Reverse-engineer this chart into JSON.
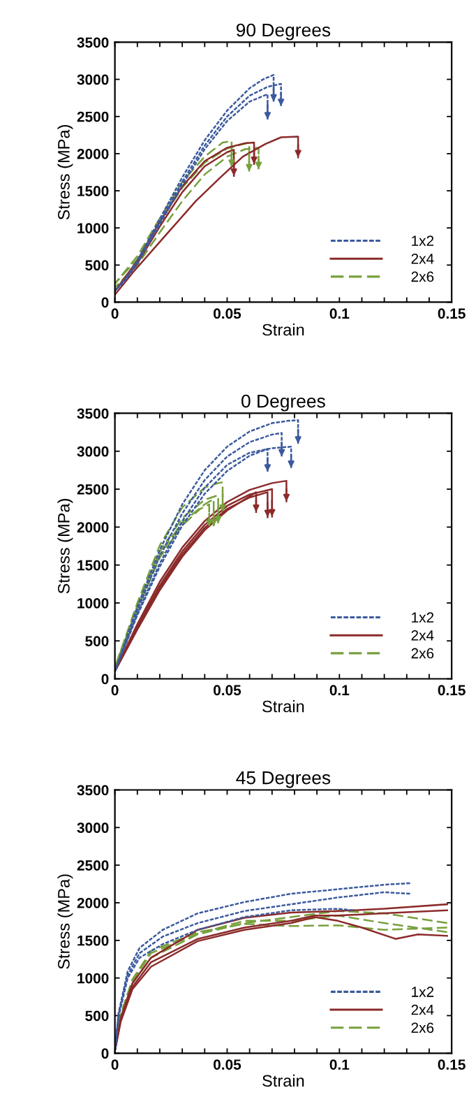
{
  "chart_data": [
    {
      "type": "line",
      "title": "90 Degrees",
      "xlabel": "Strain",
      "ylabel": "Stress (MPa)",
      "xlim": [
        0,
        0.15
      ],
      "ylim": [
        0,
        3500
      ],
      "xticks": [
        0,
        {
          "value": 0.01,
          "label": null
        },
        {
          "value": 0.02,
          "label": null
        },
        {
          "value": 0.03,
          "label": null
        },
        {
          "value": 0.04,
          "label": null
        },
        0.05,
        {
          "value": 0.06,
          "label": null
        },
        {
          "value": 0.07,
          "label": null
        },
        {
          "value": 0.08,
          "label": null
        },
        {
          "value": 0.09,
          "label": null
        },
        0.1,
        {
          "value": 0.11,
          "label": null
        },
        {
          "value": 0.12,
          "label": null
        },
        {
          "value": 0.13,
          "label": null
        },
        {
          "value": 0.14,
          "label": null
        },
        0.15
      ],
      "yticks": [
        0,
        500,
        1000,
        1500,
        2000,
        2500,
        3000,
        3500
      ],
      "legend": "bottom right",
      "grid": false,
      "series": [
        {
          "name": "1x2",
          "color": "#3b5a9d",
          "line_style": "dotted",
          "x": [
            0,
            0.005,
            0.01,
            0.02,
            0.03,
            0.04,
            0.05,
            0.06,
            0.066,
            0.0707,
            0.0707
          ],
          "values": [
            150,
            330,
            560,
            1120,
            1680,
            2180,
            2580,
            2880,
            3000,
            3060,
            2700
          ]
        },
        {
          "color": "#3b5a9d",
          "line_style": "dotted",
          "x": [
            0,
            0.005,
            0.01,
            0.02,
            0.03,
            0.04,
            0.05,
            0.06,
            0.068,
            0.074,
            0.074
          ],
          "values": [
            150,
            320,
            540,
            1080,
            1620,
            2110,
            2500,
            2780,
            2900,
            2940,
            2640
          ]
        },
        {
          "color": "#3b5a9d",
          "line_style": "dotted",
          "x": [
            0,
            0.005,
            0.01,
            0.02,
            0.03,
            0.04,
            0.05,
            0.06,
            0.068,
            0.068
          ],
          "values": [
            150,
            310,
            520,
            1050,
            1580,
            2060,
            2440,
            2700,
            2800,
            2460
          ]
        },
        {
          "name": "2x4",
          "color": "#8b2a2a",
          "line_style": "solid",
          "x": [
            0,
            0.008,
            0.022,
            0.036,
            0.047,
            0.057,
            0.067,
            0.074,
            0.0816,
            0.0816
          ],
          "values": [
            100,
            400,
            880,
            1360,
            1680,
            1960,
            2130,
            2220,
            2230,
            1950
          ]
        },
        {
          "color": "#8b2a2a",
          "line_style": "solid",
          "x": [
            0,
            0.01,
            0.02,
            0.03,
            0.04,
            0.05,
            0.058,
            0.062,
            0.062
          ],
          "values": [
            150,
            560,
            1080,
            1560,
            1900,
            2080,
            2140,
            2150,
            1860
          ]
        },
        {
          "color": "#8b2a2a",
          "line_style": "solid",
          "x": [
            0,
            0.01,
            0.02,
            0.03,
            0.04,
            0.05,
            0.053,
            0.053
          ],
          "values": [
            150,
            520,
            1020,
            1480,
            1830,
            2020,
            2050,
            1700
          ]
        },
        {
          "name": "2x6",
          "color": "#77a03c",
          "line_style": "dashed",
          "x": [
            0,
            0.01,
            0.02,
            0.03,
            0.04,
            0.048,
            0.052,
            0.052
          ],
          "values": [
            250,
            620,
            1130,
            1620,
            1960,
            2150,
            2170,
            1820
          ]
        },
        {
          "color": "#77a03c",
          "line_style": "dashed",
          "x": [
            0,
            0.01,
            0.02,
            0.03,
            0.04,
            0.05,
            0.0598,
            0.0598
          ],
          "values": [
            250,
            580,
            1080,
            1540,
            1880,
            2070,
            2150,
            1760
          ]
        },
        {
          "color": "#77a03c",
          "line_style": "dashed",
          "x": [
            0,
            0.01,
            0.02,
            0.03,
            0.04,
            0.05,
            0.058,
            0.064,
            0.064
          ],
          "values": [
            200,
            500,
            940,
            1360,
            1720,
            1960,
            2060,
            2080,
            1790
          ]
        }
      ]
    },
    {
      "type": "line",
      "title": "0 Degrees",
      "xlabel": "Strain",
      "ylabel": "Stress (MPa)",
      "xlim": [
        0,
        0.15
      ],
      "ylim": [
        0,
        3500
      ],
      "xticks": [
        0,
        {
          "value": 0.01,
          "label": null
        },
        {
          "value": 0.02,
          "label": null
        },
        {
          "value": 0.03,
          "label": null
        },
        {
          "value": 0.04,
          "label": null
        },
        0.05,
        {
          "value": 0.06,
          "label": null
        },
        {
          "value": 0.07,
          "label": null
        },
        {
          "value": 0.08,
          "label": null
        },
        {
          "value": 0.09,
          "label": null
        },
        0.1,
        {
          "value": 0.11,
          "label": null
        },
        {
          "value": 0.12,
          "label": null
        },
        {
          "value": 0.13,
          "label": null
        },
        {
          "value": 0.14,
          "label": null
        },
        0.15
      ],
      "yticks": [
        0,
        500,
        1000,
        1500,
        2000,
        2500,
        3000,
        3500
      ],
      "legend": "bottom right",
      "grid": false,
      "series": [
        {
          "name": "1x2",
          "color": "#3b5a9d",
          "line_style": "dotted",
          "x": [
            0,
            0.01,
            0.02,
            0.03,
            0.04,
            0.05,
            0.06,
            0.07,
            0.077,
            0.0816,
            0.0816
          ],
          "values": [
            100,
            950,
            1700,
            2300,
            2750,
            3060,
            3260,
            3370,
            3400,
            3410,
            3100
          ]
        },
        {
          "color": "#3b5a9d",
          "line_style": "dotted",
          "x": [
            0,
            0.01,
            0.02,
            0.03,
            0.04,
            0.05,
            0.06,
            0.07,
            0.0743,
            0.0743
          ],
          "values": [
            100,
            900,
            1620,
            2180,
            2620,
            2930,
            3120,
            3220,
            3240,
            2930
          ]
        },
        {
          "color": "#3b5a9d",
          "line_style": "dotted",
          "x": [
            0,
            0.01,
            0.02,
            0.03,
            0.04,
            0.05,
            0.06,
            0.07,
            0.0785,
            0.0785
          ],
          "values": [
            100,
            860,
            1520,
            2080,
            2520,
            2820,
            2980,
            3040,
            3060,
            2780
          ]
        },
        {
          "color": "#3b5a9d",
          "line_style": "dotted",
          "x": [
            0,
            0.01,
            0.02,
            0.03,
            0.04,
            0.05,
            0.06,
            0.068,
            0.068
          ],
          "values": [
            100,
            840,
            1480,
            2020,
            2440,
            2740,
            2940,
            3030,
            2730
          ]
        },
        {
          "name": "2x4",
          "color": "#8b2a2a",
          "line_style": "solid",
          "x": [
            0,
            0.01,
            0.02,
            0.03,
            0.04,
            0.05,
            0.06,
            0.07,
            0.0764,
            0.0764
          ],
          "values": [
            100,
            720,
            1280,
            1730,
            2080,
            2330,
            2490,
            2580,
            2610,
            2340
          ]
        },
        {
          "color": "#8b2a2a",
          "line_style": "solid",
          "x": [
            0,
            0.01,
            0.02,
            0.03,
            0.04,
            0.05,
            0.06,
            0.07,
            0.07
          ],
          "values": [
            100,
            690,
            1230,
            1680,
            2030,
            2280,
            2430,
            2500,
            2140
          ]
        },
        {
          "color": "#8b2a2a",
          "line_style": "solid",
          "x": [
            0,
            0.01,
            0.02,
            0.03,
            0.04,
            0.05,
            0.06,
            0.068,
            0.068
          ],
          "values": [
            100,
            670,
            1200,
            1640,
            1990,
            2240,
            2390,
            2460,
            2130
          ]
        },
        {
          "color": "#8b2a2a",
          "line_style": "solid",
          "x": [
            0,
            0.01,
            0.02,
            0.03,
            0.04,
            0.05,
            0.0629,
            0.0629
          ],
          "values": [
            100,
            650,
            1170,
            1610,
            1960,
            2220,
            2460,
            2200
          ]
        },
        {
          "name": "2x6",
          "color": "#77a03c",
          "line_style": "dashed",
          "x": [
            0,
            0.01,
            0.02,
            0.03,
            0.04,
            0.046,
            0.048,
            0.048
          ],
          "values": [
            150,
            1000,
            1760,
            2260,
            2520,
            2580,
            2590,
            2200
          ]
        },
        {
          "color": "#77a03c",
          "line_style": "dashed",
          "x": [
            0,
            0.01,
            0.02,
            0.03,
            0.04,
            0.046,
            0.046
          ],
          "values": [
            150,
            960,
            1680,
            2120,
            2360,
            2420,
            2050
          ]
        },
        {
          "color": "#77a03c",
          "line_style": "dashed",
          "x": [
            0,
            0.01,
            0.02,
            0.03,
            0.04,
            0.044,
            0.044
          ],
          "values": [
            150,
            940,
            1640,
            2060,
            2300,
            2370,
            2010
          ]
        },
        {
          "color": "#77a03c",
          "line_style": "dashed",
          "x": [
            0,
            0.01,
            0.02,
            0.03,
            0.038,
            0.042,
            0.042
          ],
          "values": [
            150,
            920,
            1600,
            2020,
            2240,
            2300,
            2000
          ]
        }
      ]
    },
    {
      "type": "line",
      "title": "45 Degrees",
      "xlabel": "Strain",
      "ylabel": "Stress (MPa)",
      "xlim": [
        0,
        0.15
      ],
      "ylim": [
        0,
        3500
      ],
      "xticks": [
        0,
        {
          "value": 0.01,
          "label": null
        },
        {
          "value": 0.02,
          "label": null
        },
        {
          "value": 0.03,
          "label": null
        },
        {
          "value": 0.04,
          "label": null
        },
        0.05,
        {
          "value": 0.06,
          "label": null
        },
        {
          "value": 0.07,
          "label": null
        },
        {
          "value": 0.08,
          "label": null
        },
        {
          "value": 0.09,
          "label": null
        },
        0.1,
        {
          "value": 0.11,
          "label": null
        },
        {
          "value": 0.12,
          "label": null
        },
        {
          "value": 0.13,
          "label": null
        },
        {
          "value": 0.14,
          "label": null
        },
        0.15
      ],
      "yticks": [
        0,
        500,
        1000,
        1500,
        2000,
        2500,
        3000,
        3500
      ],
      "legend": "bottom right",
      "grid": false,
      "series": [
        {
          "name": "1x2",
          "color": "#3b5a9d",
          "line_style": "dotted",
          "x": [
            0,
            0.0016,
            0.0057,
            0.011,
            0.0213,
            0.0369,
            0.0577,
            0.0785,
            0.0993,
            0.12,
            0.1315
          ],
          "values": [
            30,
            530,
            1090,
            1400,
            1640,
            1860,
            2010,
            2120,
            2180,
            2240,
            2260
          ]
        },
        {
          "color": "#3b5a9d",
          "line_style": "dotted",
          "x": [
            0,
            0.0016,
            0.0057,
            0.011,
            0.0213,
            0.0369,
            0.0577,
            0.0785,
            0.0993,
            0.12,
            0.1315
          ],
          "values": [
            30,
            500,
            1040,
            1330,
            1550,
            1730,
            1890,
            1980,
            2070,
            2140,
            2120
          ]
        },
        {
          "color": "#3b5a9d",
          "line_style": "dotted",
          "x": [
            0,
            0.0016,
            0.0057,
            0.011,
            0.0213,
            0.0369,
            0.0577,
            0.0785,
            0.0993,
            0.106
          ],
          "values": [
            30,
            480,
            1000,
            1270,
            1450,
            1640,
            1810,
            1900,
            1920,
            1900
          ]
        },
        {
          "name": "2x4",
          "color": "#8b2a2a",
          "line_style": "solid",
          "x": [
            0,
            0.0026,
            0.0078,
            0.0161,
            0.0369,
            0.0577,
            0.0785,
            0.0993,
            0.12,
            0.148
          ],
          "values": [
            30,
            470,
            930,
            1270,
            1640,
            1800,
            1870,
            1890,
            1920,
            1980
          ]
        },
        {
          "color": "#8b2a2a",
          "line_style": "solid",
          "x": [
            0,
            0.0026,
            0.0078,
            0.0161,
            0.0369,
            0.0577,
            0.0785,
            0.089,
            0.0993,
            0.12,
            0.148
          ],
          "values": [
            30,
            440,
            880,
            1210,
            1520,
            1670,
            1760,
            1830,
            1830,
            1860,
            1900
          ]
        },
        {
          "color": "#8b2a2a",
          "line_style": "solid",
          "x": [
            0,
            0.0026,
            0.0078,
            0.0161,
            0.0369,
            0.0577,
            0.0785,
            0.089,
            0.0993,
            0.11,
            0.125,
            0.135,
            0.148
          ],
          "values": [
            30,
            420,
            850,
            1150,
            1490,
            1640,
            1730,
            1810,
            1760,
            1670,
            1520,
            1580,
            1560
          ]
        },
        {
          "name": "2x6",
          "color": "#77a03c",
          "line_style": "dashed",
          "x": [
            0,
            0.0016,
            0.0078,
            0.0161,
            0.0369,
            0.0577,
            0.0785,
            0.0993,
            0.12,
            0.148
          ],
          "values": [
            30,
            400,
            930,
            1270,
            1580,
            1730,
            1810,
            1890,
            1860,
            1730
          ]
        },
        {
          "color": "#77a03c",
          "line_style": "dashed",
          "x": [
            0,
            0.0016,
            0.0078,
            0.0161,
            0.0369,
            0.0577,
            0.0785,
            0.0993,
            0.12,
            0.148
          ],
          "values": [
            30,
            420,
            960,
            1330,
            1590,
            1760,
            1760,
            1830,
            1730,
            1610
          ]
        },
        {
          "color": "#77a03c",
          "line_style": "dashed",
          "x": [
            0,
            0.0016,
            0.0078,
            0.0161,
            0.0369,
            0.0577,
            0.0785,
            0.0993,
            0.12,
            0.148
          ],
          "values": [
            30,
            430,
            980,
            1360,
            1610,
            1720,
            1690,
            1700,
            1640,
            1670
          ]
        }
      ]
    }
  ]
}
